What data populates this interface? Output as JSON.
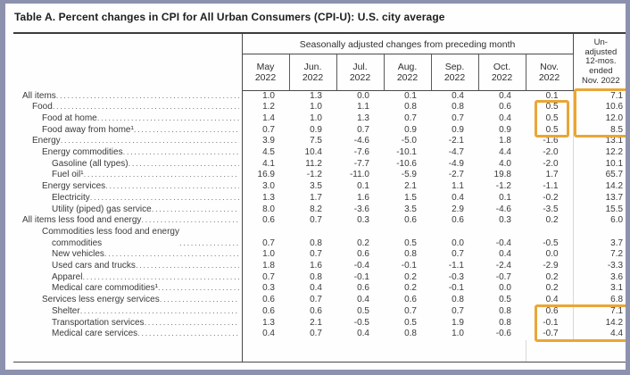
{
  "title": "Table A. Percent changes in CPI for All Urban Consumers (CPI-U): U.S. city average",
  "table": {
    "group_header": "Seasonally adjusted changes from preceding month",
    "unadjusted_header": "Un-\nadjusted\n12-mos.\nended\nNov. 2022",
    "month_columns": [
      "May\n2022",
      "Jun.\n2022",
      "Jul.\n2022",
      "Aug.\n2022",
      "Sep.\n2022",
      "Oct.\n2022",
      "Nov.\n2022"
    ],
    "rows": [
      {
        "label": "All items",
        "indent": 0,
        "values": [
          "1.0",
          "1.3",
          "0.0",
          "0.1",
          "0.4",
          "0.4",
          "0.1",
          "7.1"
        ]
      },
      {
        "label": "Food",
        "indent": 1,
        "values": [
          "1.2",
          "1.0",
          "1.1",
          "0.8",
          "0.8",
          "0.6",
          "0.5",
          "10.6"
        ]
      },
      {
        "label": "Food at home",
        "indent": 2,
        "values": [
          "1.4",
          "1.0",
          "1.3",
          "0.7",
          "0.7",
          "0.4",
          "0.5",
          "12.0"
        ]
      },
      {
        "label": "Food away from home¹",
        "indent": 2,
        "values": [
          "0.7",
          "0.9",
          "0.7",
          "0.9",
          "0.9",
          "0.9",
          "0.5",
          "8.5"
        ]
      },
      {
        "label": "Energy",
        "indent": 1,
        "values": [
          "3.9",
          "7.5",
          "-4.6",
          "-5.0",
          "-2.1",
          "1.8",
          "-1.6",
          "13.1"
        ]
      },
      {
        "label": "Energy commodities",
        "indent": 2,
        "values": [
          "4.5",
          "10.4",
          "-7.6",
          "-10.1",
          "-4.7",
          "4.4",
          "-2.0",
          "12.2"
        ]
      },
      {
        "label": "Gasoline (all types)",
        "indent": 3,
        "values": [
          "4.1",
          "11.2",
          "-7.7",
          "-10.6",
          "-4.9",
          "4.0",
          "-2.0",
          "10.1"
        ]
      },
      {
        "label": "Fuel oil¹",
        "indent": 3,
        "values": [
          "16.9",
          "-1.2",
          "-11.0",
          "-5.9",
          "-2.7",
          "19.8",
          "1.7",
          "65.7"
        ]
      },
      {
        "label": "Energy services",
        "indent": 2,
        "values": [
          "3.0",
          "3.5",
          "0.1",
          "2.1",
          "1.1",
          "-1.2",
          "-1.1",
          "14.2"
        ]
      },
      {
        "label": "Electricity",
        "indent": 3,
        "values": [
          "1.3",
          "1.7",
          "1.6",
          "1.5",
          "0.4",
          "0.1",
          "-0.2",
          "13.7"
        ]
      },
      {
        "label": "Utility (piped) gas service",
        "indent": 3,
        "values": [
          "8.0",
          "8.2",
          "-3.6",
          "3.5",
          "2.9",
          "-4.6",
          "-3.5",
          "15.5"
        ]
      },
      {
        "label": "All items less food and energy",
        "indent": 0,
        "values": [
          "0.6",
          "0.7",
          "0.3",
          "0.6",
          "0.6",
          "0.3",
          "0.2",
          "6.0"
        ]
      },
      {
        "label": "Commodities less food and energy\ncommodities",
        "indent": 2,
        "values": [
          "0.7",
          "0.8",
          "0.2",
          "0.5",
          "0.0",
          "-0.4",
          "-0.5",
          "3.7"
        ]
      },
      {
        "label": "New vehicles",
        "indent": 3,
        "values": [
          "1.0",
          "0.7",
          "0.6",
          "0.8",
          "0.7",
          "0.4",
          "0.0",
          "7.2"
        ]
      },
      {
        "label": "Used cars and trucks",
        "indent": 3,
        "values": [
          "1.8",
          "1.6",
          "-0.4",
          "-0.1",
          "-1.1",
          "-2.4",
          "-2.9",
          "-3.3"
        ]
      },
      {
        "label": "Apparel",
        "indent": 3,
        "values": [
          "0.7",
          "0.8",
          "-0.1",
          "0.2",
          "-0.3",
          "-0.7",
          "0.2",
          "3.6"
        ]
      },
      {
        "label": "Medical care commodities¹",
        "indent": 3,
        "values": [
          "0.3",
          "0.4",
          "0.6",
          "0.2",
          "-0.1",
          "0.0",
          "0.2",
          "3.1"
        ]
      },
      {
        "label": "Services less energy services",
        "indent": 2,
        "values": [
          "0.6",
          "0.7",
          "0.4",
          "0.6",
          "0.8",
          "0.5",
          "0.4",
          "6.8"
        ]
      },
      {
        "label": "Shelter",
        "indent": 3,
        "values": [
          "0.6",
          "0.6",
          "0.5",
          "0.7",
          "0.7",
          "0.8",
          "0.6",
          "7.1"
        ]
      },
      {
        "label": "Transportation services",
        "indent": 3,
        "values": [
          "1.3",
          "2.1",
          "-0.5",
          "0.5",
          "1.9",
          "0.8",
          "-0.1",
          "14.2"
        ]
      },
      {
        "label": "Medical care services",
        "indent": 3,
        "values": [
          "0.4",
          "0.7",
          "0.4",
          "0.8",
          "1.0",
          "-0.6",
          "-0.7",
          "4.4"
        ]
      }
    ],
    "highlights": [
      {
        "row_start": 1,
        "row_end": 3,
        "col_start": 6,
        "col_end": 6
      },
      {
        "row_start": 0,
        "row_end": 3,
        "col_start": 7,
        "col_end": 7
      },
      {
        "row_start": 18,
        "row_end": 20,
        "col_start": 6,
        "col_end": 7
      }
    ]
  },
  "colors": {
    "frame": "#8C92AE",
    "highlight": "#EAA636",
    "rule": "#4A4A4A",
    "text": "#3A3A3A"
  }
}
